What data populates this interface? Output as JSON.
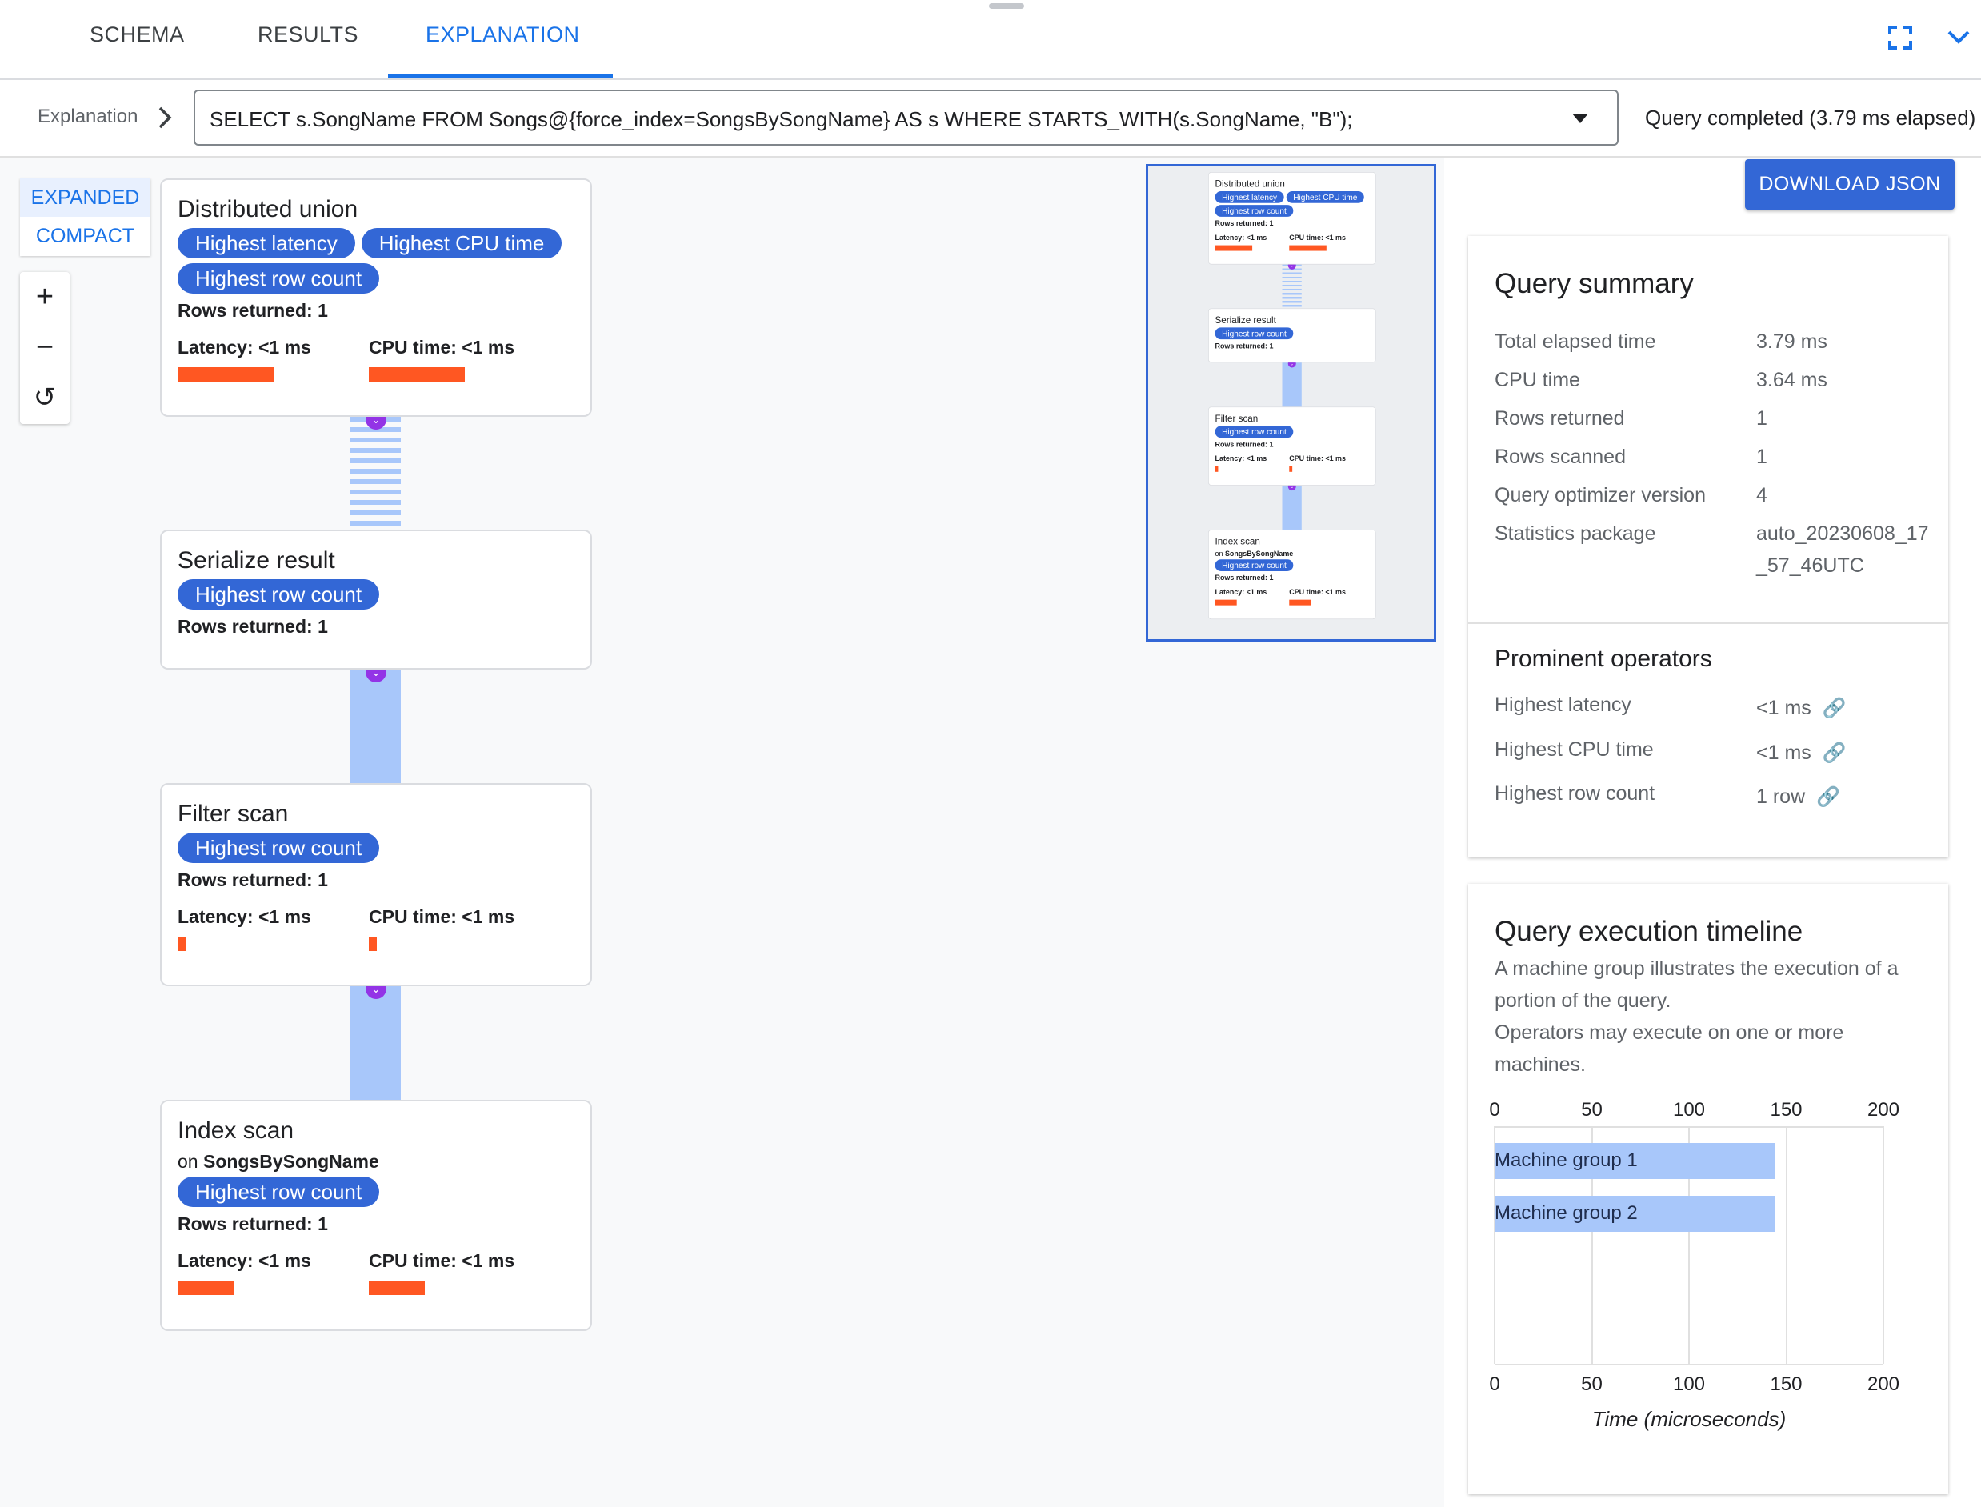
{
  "tabs": [
    {
      "label": "SCHEMA"
    },
    {
      "label": "RESULTS"
    },
    {
      "label": "EXPLANATION",
      "active": true
    }
  ],
  "header_icons": {
    "fullscreen": "fullscreen-icon",
    "collapse": "chevron-down-icon"
  },
  "breadcrumb": {
    "label": "Explanation"
  },
  "query_select": {
    "value": "SELECT s.SongName FROM Songs@{force_index=SongsBySongName} AS s WHERE STARTS_WITH(s.SongName, \"B\");"
  },
  "status": "Query completed (3.79 ms elapsed)",
  "view_modes": {
    "expanded": "EXPANDED",
    "compact": "COMPACT",
    "selected": "EXPANDED"
  },
  "zoom_controls": {
    "zoom_in": "+",
    "zoom_out": "−",
    "reset": "↺"
  },
  "graph": {
    "nodes": [
      {
        "title": "Distributed union",
        "chips": [
          "Highest latency",
          "Highest CPU time",
          "Highest row count"
        ],
        "rows": "Rows returned: 1",
        "latency": "Latency: <1 ms",
        "cpu": "CPU time: <1 ms",
        "latency_fill": 1.0,
        "cpu_fill": 1.0
      },
      {
        "title": "Serialize result",
        "chips": [
          "Highest row count"
        ],
        "rows": "Rows returned: 1"
      },
      {
        "title": "Filter scan",
        "chips": [
          "Highest row count"
        ],
        "rows": "Rows returned: 1",
        "latency": "Latency: <1 ms",
        "cpu": "CPU time: <1 ms",
        "latency_fill": 0.08,
        "cpu_fill": 0.08
      },
      {
        "title": "Index scan",
        "subtitle_prefix": "on ",
        "subtitle": "SongsBySongName",
        "chips": [
          "Highest row count"
        ],
        "rows": "Rows returned: 1",
        "latency": "Latency: <1 ms",
        "cpu": "CPU time: <1 ms",
        "latency_fill": 0.58,
        "cpu_fill": 0.58
      }
    ]
  },
  "download_button": "DOWNLOAD JSON",
  "summary": {
    "title": "Query summary",
    "rows": [
      {
        "label": "Total elapsed time",
        "value": "3.79 ms"
      },
      {
        "label": "CPU time",
        "value": "3.64 ms"
      },
      {
        "label": "Rows returned",
        "value": "1"
      },
      {
        "label": "Rows scanned",
        "value": "1"
      },
      {
        "label": "Query optimizer version",
        "value": "4"
      },
      {
        "label": "Statistics package",
        "value": "auto_20230608_17_57_46UTC"
      }
    ]
  },
  "prominent": {
    "title": "Prominent operators",
    "rows": [
      {
        "label": "Highest latency",
        "value": "<1 ms"
      },
      {
        "label": "Highest CPU time",
        "value": "<1 ms"
      },
      {
        "label": "Highest row count",
        "value": "1 row"
      }
    ]
  },
  "timeline": {
    "title": "Query execution timeline",
    "desc1": "A machine group illustrates the execution of a portion of the query.",
    "desc2": "Operators may execute on one or more machines."
  },
  "chart_data": {
    "type": "bar",
    "orientation": "horizontal",
    "categories": [
      "Machine group 1",
      "Machine group 2"
    ],
    "series": [
      {
        "start": [
          0,
          0
        ],
        "end": [
          144,
          144
        ]
      }
    ],
    "xlabel": "Time (microseconds)",
    "xlim": [
      0,
      200
    ],
    "xticks": [
      "0",
      "50",
      "100",
      "150",
      "200"
    ],
    "grid": true,
    "bar_color": "#a8c7fa"
  },
  "colors": {
    "accent": "#1a73e8",
    "chip": "#3367d6",
    "bar": "#ff5722",
    "connector": "#a8c7fa",
    "connector_dot": "#9334e6"
  }
}
